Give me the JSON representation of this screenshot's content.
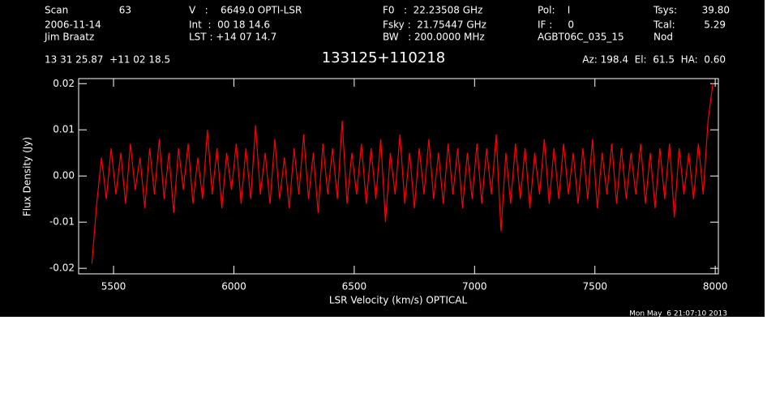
{
  "header": [
    "Scan",
    "63",
    "V   :    6649.0 OPTI-LSR",
    "F0   :  22.23508 GHz",
    "Pol:    I",
    "Tsys:",
    "39.80",
    "2006-11-14",
    "Int  :  00 18 14.6",
    "Fsky :  21.75447 GHz",
    "IF :     0",
    "Tcal:",
    "5.29",
    "Jim Braatz",
    "LST : +14 07 14.7",
    "BW   : 200.0000 MHz",
    "AGBT06C_035_15",
    "Nod",
    "13 31 25.87  +11 02 18.5",
    "Az: 198.4  El:  61.5  HA:  0.60",
    "Mon May  6 21:07:10 2013"
  ],
  "chart_data": {
    "type": "line",
    "title": "133125+110218",
    "x_label": "LSR Velocity (km/s) OPTICAL",
    "y_label": "Flux Density (Jy)",
    "color": "#ff0000",
    "xlim": [
      5355,
      8013
    ],
    "ylim": [
      -0.0212,
      0.0211
    ],
    "xticks": [
      5500,
      6000,
      6500,
      7000,
      7500,
      8000
    ],
    "yticks": [
      -0.02,
      -0.01,
      {
        "value": 0,
        "label": "0.00"
      },
      0.01,
      0.02
    ],
    "x": [
      5410,
      5430,
      5450,
      5470,
      5490,
      5510,
      5530,
      5550,
      5570,
      5590,
      5610,
      5630,
      5650,
      5670,
      5690,
      5710,
      5730,
      5750,
      5770,
      5790,
      5810,
      5830,
      5850,
      5870,
      5890,
      5910,
      5930,
      5950,
      5970,
      5990,
      6010,
      6030,
      6050,
      6070,
      6090,
      6110,
      6130,
      6150,
      6170,
      6190,
      6210,
      6230,
      6250,
      6270,
      6290,
      6310,
      6330,
      6350,
      6370,
      6390,
      6410,
      6430,
      6450,
      6470,
      6490,
      6510,
      6530,
      6550,
      6570,
      6590,
      6610,
      6630,
      6650,
      6670,
      6690,
      6710,
      6730,
      6750,
      6770,
      6790,
      6810,
      6830,
      6850,
      6870,
      6890,
      6910,
      6930,
      6950,
      6970,
      6990,
      7010,
      7030,
      7050,
      7070,
      7090,
      7110,
      7130,
      7150,
      7170,
      7190,
      7210,
      7230,
      7250,
      7270,
      7290,
      7310,
      7330,
      7350,
      7370,
      7390,
      7410,
      7430,
      7450,
      7470,
      7490,
      7510,
      7530,
      7550,
      7570,
      7590,
      7610,
      7630,
      7650,
      7670,
      7690,
      7710,
      7730,
      7750,
      7770,
      7790,
      7810,
      7830,
      7850,
      7870,
      7890,
      7910,
      7930,
      7950,
      7970,
      7990
    ],
    "values": [
      -0.019,
      -0.006,
      0.004,
      -0.005,
      0.006,
      -0.004,
      0.005,
      -0.006,
      0.007,
      -0.003,
      0.004,
      -0.007,
      0.006,
      -0.004,
      0.008,
      -0.005,
      0.005,
      -0.008,
      0.006,
      -0.003,
      0.007,
      -0.006,
      0.004,
      -0.005,
      0.01,
      -0.004,
      0.006,
      -0.007,
      0.005,
      -0.003,
      0.007,
      -0.006,
      0.006,
      -0.005,
      0.011,
      -0.004,
      0.005,
      -0.006,
      0.008,
      -0.005,
      0.004,
      -0.007,
      0.006,
      -0.004,
      0.009,
      -0.005,
      0.005,
      -0.008,
      0.007,
      -0.004,
      0.006,
      -0.005,
      0.012,
      -0.006,
      0.005,
      -0.004,
      0.007,
      -0.006,
      0.006,
      -0.005,
      0.008,
      -0.01,
      0.005,
      -0.004,
      0.009,
      -0.006,
      0.005,
      -0.007,
      0.006,
      -0.004,
      0.008,
      -0.005,
      0.005,
      -0.006,
      0.007,
      -0.004,
      0.006,
      -0.007,
      0.005,
      -0.005,
      0.007,
      -0.006,
      0.006,
      -0.004,
      0.009,
      -0.012,
      0.005,
      -0.006,
      0.007,
      -0.005,
      0.006,
      -0.007,
      0.005,
      -0.004,
      0.008,
      -0.006,
      0.006,
      -0.005,
      0.007,
      -0.004,
      0.005,
      -0.006,
      0.006,
      -0.005,
      0.008,
      -0.007,
      0.005,
      -0.004,
      0.007,
      -0.006,
      0.006,
      -0.005,
      0.005,
      -0.004,
      0.007,
      -0.006,
      0.005,
      -0.007,
      0.006,
      -0.005,
      0.007,
      -0.009,
      0.006,
      -0.004,
      0.005,
      -0.005,
      0.007,
      -0.004,
      0.012,
      0.02
    ]
  }
}
